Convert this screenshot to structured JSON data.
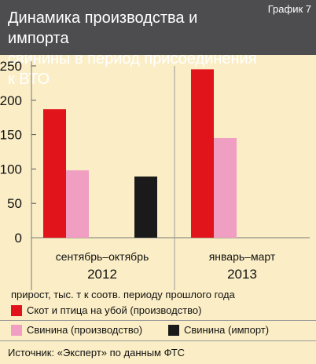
{
  "header": {
    "title_line1": "Динамика производства и импорта",
    "title_line2": "свинины в период присоединения к ВТО",
    "tag": "График 7"
  },
  "chart_data": {
    "type": "bar",
    "groups": [
      {
        "label_line1": "сентябрь–октябрь",
        "label_line2": "2012"
      },
      {
        "label_line1": "январь–март",
        "label_line2": "2013"
      }
    ],
    "series": [
      {
        "name": "Скот и птица на убой (производство)",
        "color": "#e2141b",
        "values": [
          187,
          245
        ]
      },
      {
        "name": "Свинина (производство)",
        "color": "#f19ec3",
        "values": [
          98,
          145
        ]
      },
      {
        "name": "Свинина (импорт)",
        "color": "#1a1a1a",
        "values": [
          89,
          null
        ]
      }
    ],
    "y_ticks": [
      0,
      50,
      100,
      150,
      200,
      250
    ],
    "ylim": [
      0,
      250
    ],
    "ylabel": "прирост, тыс. т к соотв. периоду прошлого года",
    "grid": false
  },
  "legend": [
    {
      "label": "Скот и птица на убой (производство)",
      "color": "#e2141b"
    },
    {
      "label": "Свинина (производство)",
      "color": "#f19ec3"
    },
    {
      "label": "Свинина (импорт)",
      "color": "#1a1a1a"
    }
  ],
  "source": "Источник: «Эксперт» по данным ФТС"
}
